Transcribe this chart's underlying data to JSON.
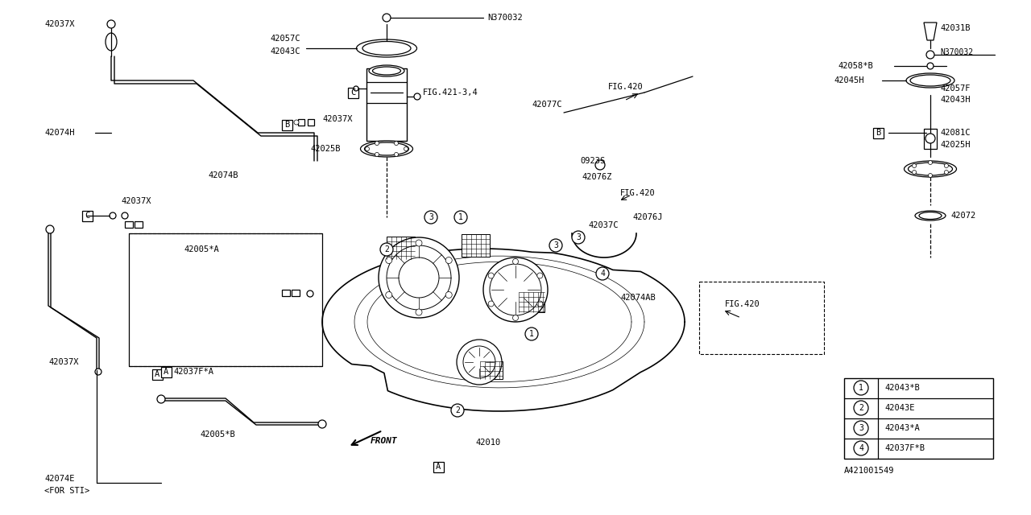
{
  "bg_color": "#ffffff",
  "line_color": "#000000",
  "font_family": "monospace",
  "diagram_id": "A421001549",
  "legend_items": [
    {
      "num": "1",
      "code": "42043*B"
    },
    {
      "num": "2",
      "code": "42043E"
    },
    {
      "num": "3",
      "code": "42043*A"
    },
    {
      "num": "4",
      "code": "42037F*B"
    }
  ]
}
